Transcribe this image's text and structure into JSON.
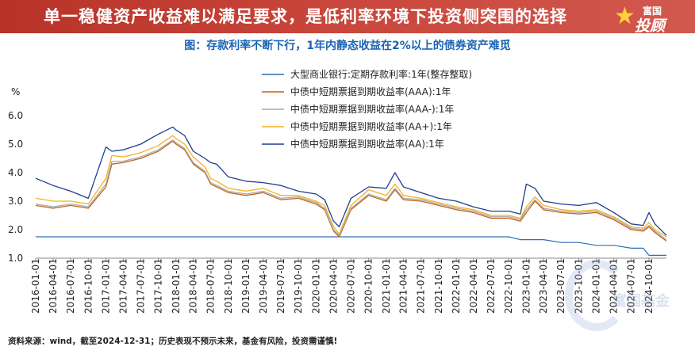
{
  "header": {
    "title": "单一稳健资产收益难以满足要求，是低利率环境下投资侧突围的选择",
    "logo_top": "富国",
    "logo_bottom": "投顾"
  },
  "subtitle": "图：存款利率不断下行，1年内静态收益在2%以上的债券资产难觅",
  "footnote": "资料来源：wind，截至2024-12-31；历史表现不预示未来，基金有风险，投资需谨慎!",
  "watermark": "富国基金",
  "chart_data": {
    "type": "line",
    "ylabel": "%",
    "ylim": [
      1.0,
      6.0
    ],
    "yticks": [
      "1.0",
      "2.0",
      "3.0",
      "4.0",
      "5.0",
      "6.0"
    ],
    "x_ticks": [
      "2016-01-01",
      "2016-04-01",
      "2016-07-01",
      "2016-10-01",
      "2017-01-01",
      "2017-04-01",
      "2017-07-01",
      "2017-10-01",
      "2018-01-01",
      "2018-04-01",
      "2018-07-01",
      "2018-10-01",
      "2019-01-01",
      "2019-04-01",
      "2019-07-01",
      "2019-10-01",
      "2020-01-01",
      "2020-04-01",
      "2020-07-01",
      "2020-10-01",
      "2021-01-01",
      "2021-04-01",
      "2021-07-01",
      "2021-10-01",
      "2022-01-01",
      "2022-04-01",
      "2022-07-01",
      "2022-10-01",
      "2023-01-01",
      "2023-04-01",
      "2023-07-01",
      "2023-10-01",
      "2024-01-01",
      "2024-04-01",
      "2024-07-01",
      "2024-10-01"
    ],
    "x": [
      "2016-01-01",
      "2016-04-01",
      "2016-07-01",
      "2016-10-01",
      "2017-01-01",
      "2017-02-01",
      "2017-04-01",
      "2017-07-01",
      "2017-10-01",
      "2017-12-15",
      "2018-01-01",
      "2018-02-15",
      "2018-04-01",
      "2018-06-01",
      "2018-07-01",
      "2018-08-01",
      "2018-10-01",
      "2019-01-01",
      "2019-04-01",
      "2019-07-01",
      "2019-10-01",
      "2020-01-01",
      "2020-02-15",
      "2020-04-01",
      "2020-05-01",
      "2020-07-01",
      "2020-10-01",
      "2021-01-01",
      "2021-02-15",
      "2021-04-01",
      "2021-07-01",
      "2021-10-01",
      "2022-01-01",
      "2022-04-01",
      "2022-07-01",
      "2022-10-01",
      "2022-12-01",
      "2023-01-01",
      "2023-02-15",
      "2023-04-01",
      "2023-07-01",
      "2023-10-01",
      "2024-01-01",
      "2024-04-01",
      "2024-07-01",
      "2024-09-01",
      "2024-10-01",
      "2024-11-01",
      "2024-12-31"
    ],
    "series": [
      {
        "name": "大型商业银行:定期存款利率:1年(整存整取)",
        "color": "#2f6db5",
        "values": [
          1.75,
          1.75,
          1.75,
          1.75,
          1.75,
          1.75,
          1.75,
          1.75,
          1.75,
          1.75,
          1.75,
          1.75,
          1.75,
          1.75,
          1.75,
          1.75,
          1.75,
          1.75,
          1.75,
          1.75,
          1.75,
          1.75,
          1.75,
          1.75,
          1.75,
          1.75,
          1.75,
          1.75,
          1.75,
          1.75,
          1.75,
          1.75,
          1.75,
          1.75,
          1.75,
          1.75,
          1.65,
          1.65,
          1.65,
          1.65,
          1.55,
          1.55,
          1.45,
          1.45,
          1.35,
          1.35,
          1.1,
          1.1,
          1.1
        ]
      },
      {
        "name": "中债中短期票据到期收益率(AAA):1年",
        "color": "#c0641e",
        "values": [
          2.85,
          2.75,
          2.85,
          2.75,
          3.5,
          4.3,
          4.35,
          4.5,
          4.75,
          5.1,
          5.0,
          4.8,
          4.3,
          4.0,
          3.6,
          3.5,
          3.3,
          3.2,
          3.3,
          3.05,
          3.1,
          2.9,
          2.7,
          1.95,
          1.75,
          2.7,
          3.2,
          3.0,
          3.4,
          3.05,
          3.0,
          2.85,
          2.7,
          2.6,
          2.4,
          2.4,
          2.3,
          2.6,
          3.0,
          2.7,
          2.6,
          2.55,
          2.6,
          2.35,
          2.0,
          1.95,
          2.1,
          1.9,
          1.6
        ]
      },
      {
        "name": "中债中短期票据到期收益率(AAA-):1年",
        "color": "#aaaaaa",
        "values": [
          2.9,
          2.8,
          2.9,
          2.8,
          3.6,
          4.4,
          4.4,
          4.55,
          4.8,
          5.15,
          5.05,
          4.85,
          4.35,
          4.05,
          3.65,
          3.55,
          3.35,
          3.25,
          3.35,
          3.1,
          3.15,
          2.95,
          2.75,
          2.0,
          1.8,
          2.75,
          3.25,
          3.05,
          3.45,
          3.1,
          3.05,
          2.9,
          2.75,
          2.65,
          2.45,
          2.45,
          2.35,
          2.7,
          3.05,
          2.75,
          2.65,
          2.6,
          2.65,
          2.4,
          2.05,
          2.0,
          2.15,
          1.95,
          1.65
        ]
      },
      {
        "name": "中债中短期票据到期收益率(AA+):1年",
        "color": "#f2b21f",
        "values": [
          3.1,
          3.0,
          3.0,
          2.9,
          3.8,
          4.6,
          4.55,
          4.7,
          4.95,
          5.3,
          5.2,
          5.0,
          4.55,
          4.2,
          3.8,
          3.7,
          3.45,
          3.35,
          3.45,
          3.2,
          3.2,
          3.0,
          2.85,
          2.1,
          1.85,
          2.85,
          3.4,
          3.2,
          3.6,
          3.2,
          3.1,
          2.95,
          2.8,
          2.7,
          2.5,
          2.5,
          2.4,
          2.8,
          3.15,
          2.85,
          2.7,
          2.65,
          2.7,
          2.45,
          2.1,
          2.05,
          2.25,
          2.0,
          1.75
        ]
      },
      {
        "name": "中债中短期票据到期收益率(AA):1年",
        "color": "#1f3f8f",
        "values": [
          3.8,
          3.55,
          3.35,
          3.1,
          4.9,
          4.75,
          4.8,
          5.0,
          5.35,
          5.6,
          5.5,
          5.3,
          4.75,
          4.5,
          4.35,
          4.3,
          3.85,
          3.7,
          3.65,
          3.55,
          3.35,
          3.25,
          3.05,
          2.3,
          2.1,
          3.1,
          3.5,
          3.45,
          4.0,
          3.5,
          3.3,
          3.1,
          3.0,
          2.8,
          2.65,
          2.65,
          2.55,
          3.6,
          3.45,
          3.0,
          2.9,
          2.85,
          2.95,
          2.6,
          2.2,
          2.15,
          2.6,
          2.2,
          1.8
        ]
      }
    ]
  }
}
